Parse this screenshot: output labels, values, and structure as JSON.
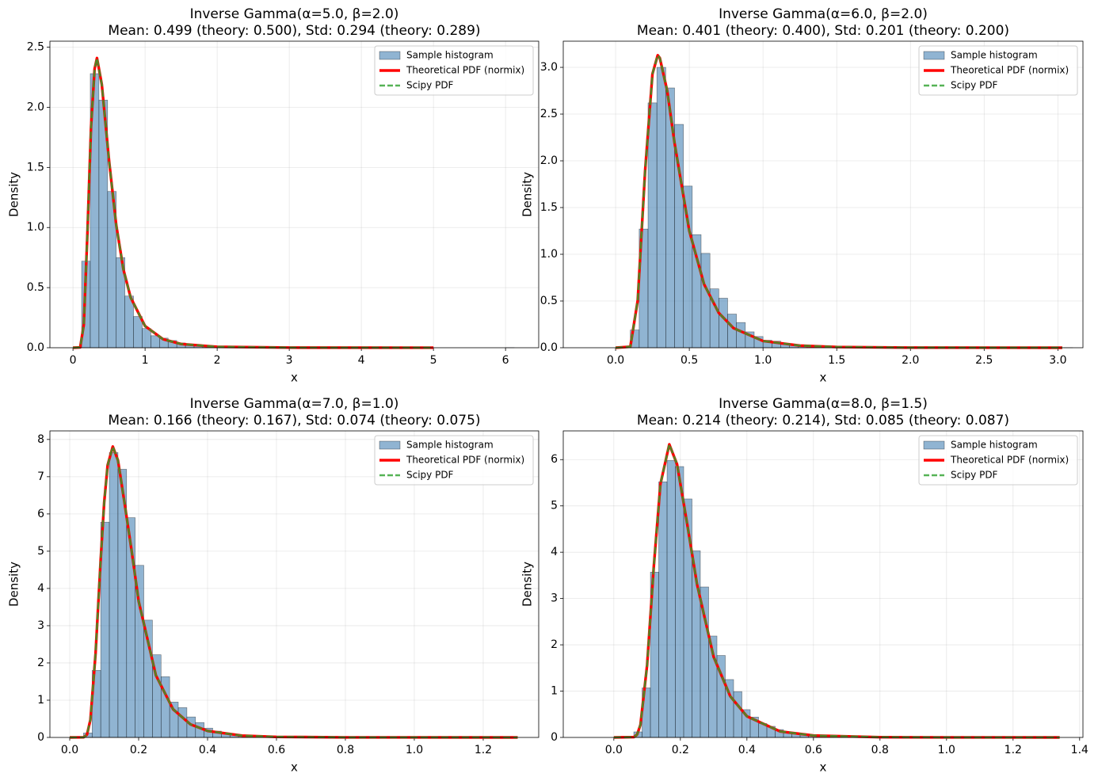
{
  "chart_data": [
    {
      "type": "histogram",
      "title": "Inverse Gamma(α=5.0, β=2.0)",
      "subtitle": "Mean: 0.499 (theory: 0.500), Std: 0.294 (theory: 0.289)",
      "x_label": "x",
      "y_label": "Density",
      "grid": true,
      "legend": "upper right",
      "xlim": [
        -0.32,
        6.46
      ],
      "ylim": [
        0,
        2.55
      ],
      "xticks": [
        0,
        1,
        2,
        3,
        4,
        5,
        6
      ],
      "yticks": [
        {
          "value": 0,
          "label": "0.0"
        },
        0.5,
        {
          "value": 1,
          "label": "1.0"
        },
        1.5,
        {
          "value": 2,
          "label": "2.0"
        },
        2.5
      ],
      "histogram": {
        "name": "Sample histogram",
        "color": "#4682b4",
        "bins": [
          0.12,
          0.24,
          0.36,
          0.48,
          0.6,
          0.72,
          0.84,
          0.96,
          1.08,
          1.2,
          1.32,
          1.44,
          1.56,
          1.68,
          1.8,
          1.92,
          2.04,
          2.16,
          2.28,
          2.4,
          2.52,
          2.64,
          2.76,
          2.88,
          3,
          3.12,
          3.24,
          3.36,
          3.48,
          3.6,
          3.72,
          3.84,
          3.96,
          4.08,
          4.2,
          4.32,
          4.44,
          4.56,
          4.68,
          4.8,
          4.92,
          5.04,
          5.16,
          5.28,
          5.4,
          5.52,
          5.64,
          5.76,
          5.88,
          6,
          6.12
        ],
        "counts": [
          0.72,
          2.28,
          2.06,
          1.3,
          0.75,
          0.43,
          0.26,
          0.16,
          0.1,
          0.08,
          0.06,
          0.04,
          0.03,
          0.022,
          0.016,
          0.012,
          0.009,
          0.007,
          0.005,
          0.004,
          0.003,
          0.003,
          0.002,
          0.002,
          0.001,
          0.001,
          0.001,
          0.001,
          0,
          0.001,
          0,
          0,
          0,
          0,
          0,
          0,
          0,
          0,
          0,
          0,
          0,
          0,
          0,
          0,
          0,
          0,
          0,
          0,
          0,
          0.001
        ]
      },
      "x": [
        0,
        0.1,
        0.15,
        0.2,
        0.25,
        0.3,
        0.333,
        0.4,
        0.5,
        0.6,
        0.7,
        0.8,
        1,
        1.25,
        1.5,
        2,
        3,
        5
      ],
      "series": [
        {
          "name": "Theoretical PDF (normix)",
          "color": "#ff0000",
          "style": "solid",
          "values": [
            0,
            0.003,
            0.19,
            0.946,
            1.83,
            2.32,
            2.41,
            2.19,
            1.56,
            1.02,
            0.65,
            0.418,
            0.18,
            0.0706,
            0.0309,
            0.0077,
            0.00094,
            0.0001
          ]
        },
        {
          "name": "Scipy PDF",
          "color": "#2ca02c",
          "style": "dashed",
          "values": [
            0,
            0.003,
            0.19,
            0.946,
            1.83,
            2.32,
            2.41,
            2.19,
            1.56,
            1.02,
            0.65,
            0.418,
            0.18,
            0.0706,
            0.0309,
            0.0077,
            0.00094,
            0.0001
          ]
        }
      ]
    },
    {
      "type": "histogram",
      "title": "Inverse Gamma(α=6.0, β=2.0)",
      "subtitle": "Mean: 0.401 (theory: 0.400), Std: 0.201 (theory: 0.200)",
      "x_label": "x",
      "y_label": "Density",
      "grid": true,
      "legend": "upper right",
      "xlim": [
        -0.355,
        3.17
      ],
      "ylim": [
        0,
        3.28
      ],
      "xticks": [
        {
          "value": 0,
          "label": "0.0"
        },
        0.5,
        {
          "value": 1,
          "label": "1.0"
        },
        1.5,
        {
          "value": 2,
          "label": "2.0"
        },
        2.5,
        {
          "value": 3,
          "label": "3.0"
        }
      ],
      "yticks": [
        {
          "value": 0,
          "label": "0.0"
        },
        0.5,
        {
          "value": 1,
          "label": "1.0"
        },
        1.5,
        {
          "value": 2,
          "label": "2.0"
        },
        2.5,
        {
          "value": 3,
          "label": "3.0"
        }
      ],
      "histogram": {
        "name": "Sample histogram",
        "color": "#4682b4",
        "bins": [
          0.1,
          0.16,
          0.22,
          0.28,
          0.34,
          0.4,
          0.46,
          0.52,
          0.58,
          0.64,
          0.7,
          0.76,
          0.82,
          0.88,
          0.94,
          1,
          1.06,
          1.12,
          1.18,
          1.24,
          1.3,
          1.36,
          1.42,
          1.48,
          1.54,
          1.6,
          1.66,
          1.72,
          1.78,
          1.84,
          1.9,
          1.96,
          2.02,
          2.08,
          2.14,
          2.2,
          2.26,
          2.32,
          2.38,
          2.44,
          2.5,
          2.56,
          2.62,
          2.68,
          2.74,
          2.8,
          2.86,
          2.92,
          2.98,
          3.04,
          3.1
        ],
        "counts": [
          0.19,
          1.27,
          2.62,
          3.0,
          2.78,
          2.39,
          1.73,
          1.21,
          1.01,
          0.63,
          0.53,
          0.36,
          0.27,
          0.17,
          0.12,
          0.08,
          0.07,
          0.04,
          0.03,
          0.02,
          0.015,
          0.01,
          0.008,
          0.006,
          0.005,
          0.003,
          0.002,
          0.001,
          0.001,
          0.001,
          0.001,
          0,
          0,
          0,
          0,
          0,
          0,
          0,
          0,
          0,
          0,
          0,
          0,
          0,
          0,
          0,
          0,
          0,
          0,
          0.001
        ]
      },
      "x": [
        0,
        0.1,
        0.15,
        0.2,
        0.25,
        0.2857,
        0.3,
        0.35,
        0.4,
        0.5,
        0.6,
        0.7,
        0.8,
        1,
        1.25,
        1.5,
        2,
        3.03
      ],
      "series": [
        {
          "name": "Theoretical PDF (normix)",
          "color": "#ff0000",
          "style": "solid",
          "values": [
            0,
            0.011,
            0.506,
            1.89,
            2.93,
            3.13,
            3.1,
            2.75,
            2.19,
            1.25,
            0.68,
            0.372,
            0.209,
            0.072,
            0.0226,
            0.0082,
            0.0015,
            0.0001
          ]
        },
        {
          "name": "Scipy PDF",
          "color": "#2ca02c",
          "style": "dashed",
          "values": [
            0,
            0.011,
            0.506,
            1.89,
            2.93,
            3.13,
            3.1,
            2.75,
            2.19,
            1.25,
            0.68,
            0.372,
            0.209,
            0.072,
            0.0226,
            0.0082,
            0.0015,
            0.0001
          ]
        }
      ]
    },
    {
      "type": "histogram",
      "title": "Inverse Gamma(α=7.0, β=1.0)",
      "subtitle": "Mean: 0.166 (theory: 0.167), Std: 0.074 (theory: 0.075)",
      "x_label": "x",
      "y_label": "Density",
      "grid": true,
      "legend": "upper right",
      "xlim": [
        -0.0575,
        1.361
      ],
      "ylim": [
        0,
        8.23
      ],
      "xticks": [
        {
          "value": 0,
          "label": "0.0"
        },
        0.2,
        0.4,
        0.6,
        0.8,
        {
          "value": 1,
          "label": "1.0"
        },
        1.2
      ],
      "yticks": [
        0,
        1,
        2,
        3,
        4,
        5,
        6,
        7,
        8
      ],
      "histogram": {
        "name": "Sample histogram",
        "color": "#4682b4",
        "bins": [
          0.04,
          0.065,
          0.09,
          0.115,
          0.14,
          0.165,
          0.19,
          0.215,
          0.24,
          0.265,
          0.29,
          0.315,
          0.34,
          0.365,
          0.39,
          0.415,
          0.44,
          0.465,
          0.49,
          0.515,
          0.54,
          0.565,
          0.59,
          0.615,
          0.64,
          0.665,
          0.69,
          0.715,
          0.74,
          0.765,
          0.79,
          0.815,
          0.84,
          0.865,
          0.89,
          0.915,
          0.94,
          0.965,
          0.99,
          1.015,
          1.04,
          1.065,
          1.09,
          1.115,
          1.14,
          1.165,
          1.19,
          1.215,
          1.24,
          1.265,
          1.29
        ],
        "counts": [
          0.12,
          1.8,
          5.78,
          7.65,
          7.2,
          5.9,
          4.62,
          3.15,
          2.22,
          1.63,
          0.95,
          0.8,
          0.55,
          0.4,
          0.25,
          0.17,
          0.12,
          0.09,
          0.06,
          0.045,
          0.03,
          0.02,
          0.015,
          0.01,
          0.008,
          0.006,
          0.004,
          0.003,
          0.002,
          0.002,
          0.001,
          0.001,
          0,
          0,
          0,
          0,
          0,
          0,
          0,
          0,
          0,
          0,
          0,
          0,
          0,
          0,
          0,
          0,
          0,
          0.001
        ]
      },
      "x": [
        0,
        0.04,
        0.05,
        0.06,
        0.075,
        0.09,
        0.1,
        0.11,
        0.125,
        0.14,
        0.16,
        0.18,
        0.2,
        0.25,
        0.3,
        0.35,
        0.4,
        0.5,
        0.6,
        0.8,
        1.3
      ],
      "series": [
        {
          "name": "Theoretical PDF (normix)",
          "color": "#ff0000",
          "style": "solid",
          "values": [
            0,
            0.0029,
            0.073,
            0.474,
            2.25,
            4.8,
            6.31,
            7.31,
            7.81,
            7.44,
            6.24,
            4.99,
            3.66,
            1.67,
            0.756,
            0.353,
            0.174,
            0.048,
            0.0156,
            0.0024,
            0.0001
          ]
        },
        {
          "name": "Scipy PDF",
          "color": "#2ca02c",
          "style": "dashed",
          "values": [
            0,
            0.0029,
            0.073,
            0.474,
            2.25,
            4.8,
            6.31,
            7.31,
            7.81,
            7.44,
            6.24,
            4.99,
            3.66,
            1.67,
            0.756,
            0.353,
            0.174,
            0.048,
            0.0156,
            0.0024,
            0.0001
          ]
        }
      ]
    },
    {
      "type": "histogram",
      "title": "Inverse Gamma(α=8.0, β=1.5)",
      "subtitle": "Mean: 0.214 (theory: 0.214), Std: 0.085 (theory: 0.087)",
      "x_label": "x",
      "y_label": "Density",
      "grid": true,
      "legend": "upper right",
      "xlim": [
        -0.152,
        1.41
      ],
      "ylim": [
        0,
        6.62
      ],
      "xticks": [
        {
          "value": 0,
          "label": "0.0"
        },
        0.2,
        0.4,
        0.6,
        0.8,
        {
          "value": 1,
          "label": "1.0"
        },
        1.2,
        1.4
      ],
      "yticks": [
        0,
        1,
        2,
        3,
        4,
        5,
        6
      ],
      "histogram": {
        "name": "Sample histogram",
        "color": "#4682b4",
        "bins": [
          0.06,
          0.085,
          0.11,
          0.135,
          0.16,
          0.185,
          0.21,
          0.235,
          0.26,
          0.285,
          0.31,
          0.335,
          0.36,
          0.385,
          0.41,
          0.435,
          0.46,
          0.485,
          0.51,
          0.535,
          0.56,
          0.585,
          0.61,
          0.635,
          0.66,
          0.685,
          0.71,
          0.735,
          0.76,
          0.785,
          0.81,
          0.835,
          0.86,
          0.885,
          0.91,
          0.935,
          0.96,
          0.985,
          1.01,
          1.035,
          1.06,
          1.085,
          1.11,
          1.135,
          1.16,
          1.185,
          1.21,
          1.235,
          1.26,
          1.285,
          1.31
        ],
        "counts": [
          0.12,
          1.07,
          3.57,
          5.52,
          5.98,
          5.85,
          5.15,
          4.03,
          3.25,
          2.19,
          1.77,
          1.25,
          0.99,
          0.6,
          0.44,
          0.3,
          0.24,
          0.17,
          0.12,
          0.09,
          0.07,
          0.05,
          0.035,
          0.025,
          0.02,
          0.015,
          0.01,
          0.008,
          0.006,
          0.004,
          0.003,
          0.002,
          0.002,
          0.001,
          0.001,
          0,
          0,
          0,
          0,
          0,
          0,
          0,
          0,
          0,
          0,
          0,
          0,
          0,
          0,
          0.001
        ]
      },
      "x": [
        0,
        0.06,
        0.07,
        0.08,
        0.1,
        0.12,
        0.14,
        0.1667,
        0.19,
        0.22,
        0.25,
        0.3,
        0.35,
        0.4,
        0.5,
        0.6,
        0.8,
        1,
        1.34
      ],
      "series": [
        {
          "name": "Theoretical PDF (normix)",
          "color": "#ff0000",
          "style": "solid",
          "values": [
            0,
            0.007,
            0.062,
            0.273,
            1.56,
            3.68,
            5.47,
            6.33,
            5.9,
            4.63,
            3.31,
            1.74,
            0.888,
            0.456,
            0.13,
            0.041,
            0.0058,
            0.0011,
            0.0001
          ]
        },
        {
          "name": "Scipy PDF",
          "color": "#2ca02c",
          "style": "dashed",
          "values": [
            0,
            0.007,
            0.062,
            0.273,
            1.56,
            3.68,
            5.47,
            6.33,
            5.9,
            4.63,
            3.31,
            1.74,
            0.888,
            0.456,
            0.13,
            0.041,
            0.0058,
            0.0011,
            0.0001
          ]
        }
      ]
    }
  ]
}
